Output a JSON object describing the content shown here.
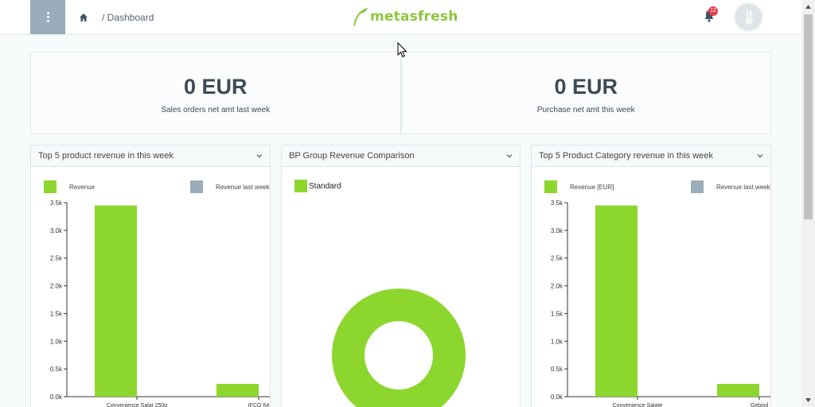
{
  "header": {
    "breadcrumb": "/ Dashboard",
    "logo_text": "metasfresh",
    "notification_count": "12"
  },
  "kpis": [
    {
      "value": "0 EUR",
      "label": "Sales orders net amt last week"
    },
    {
      "value": "0 EUR",
      "label": "Purchase net amt this week"
    }
  ],
  "widgets": [
    {
      "title": "Top 5 product revenue in this week"
    },
    {
      "title": "BP Group Revenue Comparison"
    },
    {
      "title": "Top 5 Product Category revenue in this week"
    }
  ],
  "colors": {
    "accent": "#8cd62e",
    "secondary": "#9aadbb",
    "menu": "#9aadbb",
    "badge": "#e23c4c"
  },
  "chart_data": [
    {
      "type": "bar",
      "title": "Top 5 product revenue in this week",
      "categories": [
        "Convenience Salat 250g",
        "IFCO 64"
      ],
      "series": [
        {
          "name": "Revenue",
          "color": "#8cd62e",
          "values": [
            3450,
            230
          ]
        },
        {
          "name": "Revenue last week",
          "color": "#9aadbb",
          "values": [
            0,
            0
          ]
        }
      ],
      "yticks": [
        "0.0k",
        "0.5k",
        "1.0k",
        "1.5k",
        "2.0k",
        "2.5k",
        "3.0k",
        "3.5k"
      ],
      "ylim": [
        0,
        3500
      ]
    },
    {
      "type": "pie",
      "title": "BP Group Revenue Comparison",
      "donut": true,
      "slices": [
        {
          "name": "Standard",
          "value": 100,
          "color": "#8cd62e"
        }
      ]
    },
    {
      "type": "bar",
      "title": "Top 5 Product Category revenue in this week",
      "categories": [
        "Convenience Salate",
        "Gebinde"
      ],
      "category_labels": [
        "Convenience Salate",
        "Gebind"
      ],
      "series": [
        {
          "name": "Revenue [EUR]",
          "color": "#8cd62e",
          "values": [
            3450,
            230
          ]
        },
        {
          "name": "Revenue last week",
          "color": "#9aadbb",
          "values": [
            0,
            0
          ]
        }
      ],
      "yticks": [
        "0.0k",
        "0.5k",
        "1.0k",
        "1.5k",
        "2.0k",
        "2.5k",
        "3.0k",
        "3.5k"
      ],
      "ylim": [
        0,
        3500
      ]
    }
  ]
}
